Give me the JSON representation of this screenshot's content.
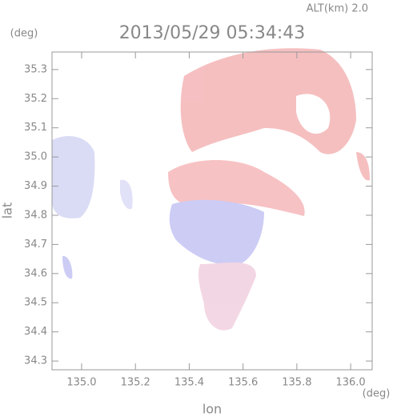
{
  "chart_data": {
    "type": "radar-map",
    "title": "2013/05/29 05:34:43",
    "altitude_label": "ALT(km) 2.0",
    "y_unit": "(deg)",
    "x_unit": "(deg)",
    "xlabel": "lon",
    "ylabel": "lat",
    "xlim": [
      134.89,
      136.08
    ],
    "xticks": [
      {
        "value": 135,
        "label": "135.0"
      },
      135.2,
      135.4,
      135.6,
      135.8,
      {
        "value": 136,
        "label": "136.0"
      }
    ],
    "ylim": [
      34.27,
      35.36
    ],
    "yticks": [
      34.3,
      34.4,
      34.5,
      34.6,
      34.7,
      34.8,
      34.9,
      {
        "value": 35,
        "label": "35.0"
      },
      35.1,
      35.2,
      35.3
    ]
  }
}
